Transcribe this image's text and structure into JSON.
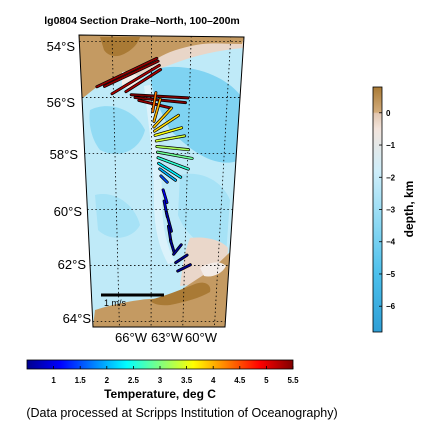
{
  "chart_data": {
    "type": "map-vector",
    "title": "lg0804 Section Drake–North, 100–200m",
    "lat_ticks": [
      "54°S",
      "56°S",
      "58°S",
      "60°S",
      "62°S",
      "64°S"
    ],
    "lon_ticks": [
      "66°W",
      "63°W",
      "60°W"
    ],
    "lat_range": [
      -64.2,
      -53.8
    ],
    "lon_range": [
      -68.5,
      -56.0
    ],
    "grid": true,
    "scale_arrow": {
      "label": "1 m/s",
      "speed": 1.0
    },
    "vectors": [
      {
        "lat": -54.6,
        "lon": -62.6,
        "u": -0.95,
        "v": -0.45,
        "temp": 5.4
      },
      {
        "lat": -54.7,
        "lon": -62.5,
        "u": -0.85,
        "v": -0.4,
        "temp": 5.4
      },
      {
        "lat": -54.85,
        "lon": -62.4,
        "u": -0.75,
        "v": -0.45,
        "temp": 5.3
      },
      {
        "lat": -55.0,
        "lon": -62.3,
        "u": -0.55,
        "v": -0.35,
        "temp": 5.3
      },
      {
        "lat": -55.9,
        "lon": -64.6,
        "u": 0.9,
        "v": -0.05,
        "temp": 5.5
      },
      {
        "lat": -56.0,
        "lon": -64.3,
        "u": 0.8,
        "v": -0.08,
        "temp": 5.5
      },
      {
        "lat": -56.1,
        "lon": -64.0,
        "u": 0.5,
        "v": -0.12,
        "temp": 5.4
      },
      {
        "lat": -56.5,
        "lon": -62.9,
        "u": 0.05,
        "v": 0.3,
        "temp": 4.3
      },
      {
        "lat": -56.85,
        "lon": -62.8,
        "u": 0.1,
        "v": 0.35,
        "temp": 4.0
      },
      {
        "lat": -57.05,
        "lon": -62.8,
        "u": 0.28,
        "v": 0.3,
        "temp": 3.9
      },
      {
        "lat": -57.2,
        "lon": -62.75,
        "u": 0.38,
        "v": 0.25,
        "temp": 3.8
      },
      {
        "lat": -57.35,
        "lon": -62.7,
        "u": 0.42,
        "v": 0.12,
        "temp": 3.6
      },
      {
        "lat": -57.55,
        "lon": -62.6,
        "u": 0.45,
        "v": 0.08,
        "temp": 3.4
      },
      {
        "lat": -57.75,
        "lon": -62.55,
        "u": 0.5,
        "v": -0.05,
        "temp": 3.2
      },
      {
        "lat": -57.95,
        "lon": -62.5,
        "u": 0.55,
        "v": -0.1,
        "temp": 2.9
      },
      {
        "lat": -58.15,
        "lon": -62.45,
        "u": 0.48,
        "v": -0.18,
        "temp": 2.6
      },
      {
        "lat": -58.35,
        "lon": -62.4,
        "u": 0.35,
        "v": -0.22,
        "temp": 2.3
      },
      {
        "lat": -58.55,
        "lon": -62.3,
        "u": 0.25,
        "v": -0.18,
        "temp": 2.0
      },
      {
        "lat": -58.8,
        "lon": -62.2,
        "u": 0.1,
        "v": -0.1,
        "temp": 1.5
      },
      {
        "lat": -59.3,
        "lon": -62.0,
        "u": 0.06,
        "v": -0.2,
        "temp": 1.0
      },
      {
        "lat": -59.7,
        "lon": -61.9,
        "u": 0.05,
        "v": -0.25,
        "temp": 0.8
      },
      {
        "lat": -60.1,
        "lon": -61.7,
        "u": 0.08,
        "v": -0.3,
        "temp": 0.6
      },
      {
        "lat": -60.6,
        "lon": -61.5,
        "u": 0.04,
        "v": -0.25,
        "temp": 0.5
      },
      {
        "lat": -61.1,
        "lon": -61.3,
        "u": 0.06,
        "v": -0.2,
        "temp": 0.5
      },
      {
        "lat": -61.6,
        "lon": -61.0,
        "u": 0.12,
        "v": 0.15,
        "temp": 0.4
      },
      {
        "lat": -61.9,
        "lon": -60.8,
        "u": 0.18,
        "v": 0.12,
        "temp": 0.4
      },
      {
        "lat": -62.2,
        "lon": -60.6,
        "u": 0.2,
        "v": 0.1,
        "temp": 0.4
      }
    ],
    "temperature_colorbar": {
      "label": "Temperature, deg C",
      "ticks": [
        "1",
        "1.5",
        "2",
        "2.5",
        "3",
        "3.5",
        "4",
        "4.5",
        "5",
        "5.5"
      ],
      "range": [
        0.5,
        5.5
      ],
      "stops": [
        "#00008f",
        "#0000ff",
        "#0080ff",
        "#00ffff",
        "#80ff80",
        "#ffff00",
        "#ff8000",
        "#ff0000",
        "#800000"
      ]
    },
    "depth_colorbar": {
      "label": "depth, km",
      "ticks": [
        "0",
        "−1",
        "−2",
        "−3",
        "−4",
        "−5",
        "−6"
      ],
      "range": [
        -6.8,
        0.8
      ],
      "stops": [
        {
          "v": -6.8,
          "c": "#2f9fd6"
        },
        {
          "v": -5.0,
          "c": "#4cc0ec"
        },
        {
          "v": -3.5,
          "c": "#8ad8f3"
        },
        {
          "v": -1.8,
          "c": "#cfeefa"
        },
        {
          "v": -0.5,
          "c": "#f2e4dc"
        },
        {
          "v": -0.02,
          "c": "#e2c6b0"
        },
        {
          "v": 0.02,
          "c": "#d3ac7c"
        },
        {
          "v": 0.8,
          "c": "#a97a35"
        }
      ]
    }
  },
  "footer": {
    "credit": "(Data processed at Scripps Institution of Oceanography)"
  }
}
